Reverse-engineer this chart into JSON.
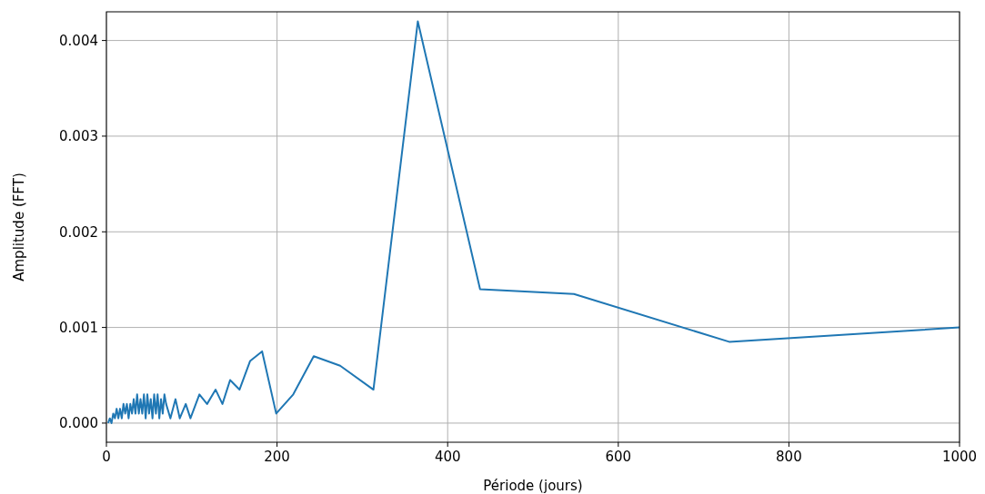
{
  "chart_data": {
    "type": "line",
    "xlabel": "Période (jours)",
    "ylabel": "Amplitude (FFT)",
    "xlim": [
      0,
      1000
    ],
    "ylim": [
      -0.0002,
      0.0043
    ],
    "xticks": [
      0,
      200,
      400,
      600,
      800,
      1000
    ],
    "yticks": [
      {
        "value": 0,
        "label": "0.000"
      },
      {
        "value": 0.001,
        "label": "0.001"
      },
      {
        "value": 0.002,
        "label": "0.002"
      },
      {
        "value": 0.003,
        "label": "0.003"
      },
      {
        "value": 0.004,
        "label": "0.004"
      }
    ],
    "grid": true,
    "marker": "none",
    "line_style": "solid",
    "series": [
      {
        "color": "#1f77b4",
        "x": [
          2,
          4,
          6,
          8,
          10,
          12,
          14,
          16,
          18,
          20,
          22,
          24,
          26,
          28,
          30,
          32,
          34,
          36,
          38,
          40,
          42,
          44,
          46,
          48,
          50,
          52,
          54,
          56,
          58,
          60,
          62,
          64,
          66,
          68,
          70,
          75,
          81,
          86,
          93,
          98.5,
          109,
          118,
          128,
          136,
          145,
          156,
          168.5,
          182.5,
          199,
          219,
          243,
          274,
          313,
          365,
          438,
          548,
          730,
          1000
        ],
        "values": [
          0,
          5e-05,
          0,
          0.0001,
          5e-05,
          0.00015,
          5e-05,
          0.00015,
          5e-05,
          0.0002,
          0.0001,
          0.0002,
          5e-05,
          0.0002,
          0.0001,
          0.00025,
          0.0001,
          0.0003,
          0.0001,
          0.00025,
          0.0001,
          0.0003,
          5e-05,
          0.0003,
          0.0001,
          0.00025,
          5e-05,
          0.0003,
          0.0001,
          0.0003,
          5e-05,
          0.00025,
          0.0001,
          0.0003,
          0.0002,
          5e-05,
          0.00025,
          5e-05,
          0.0002,
          5e-05,
          0.0003,
          0.0002,
          0.00035,
          0.0002,
          0.00045,
          0.00035,
          0.00065,
          0.00075,
          0.0001,
          0.0003,
          0.0007,
          0.0006,
          0.00035,
          0.0042,
          0.0014,
          0.00135,
          0.00085,
          0.001
        ]
      }
    ]
  }
}
